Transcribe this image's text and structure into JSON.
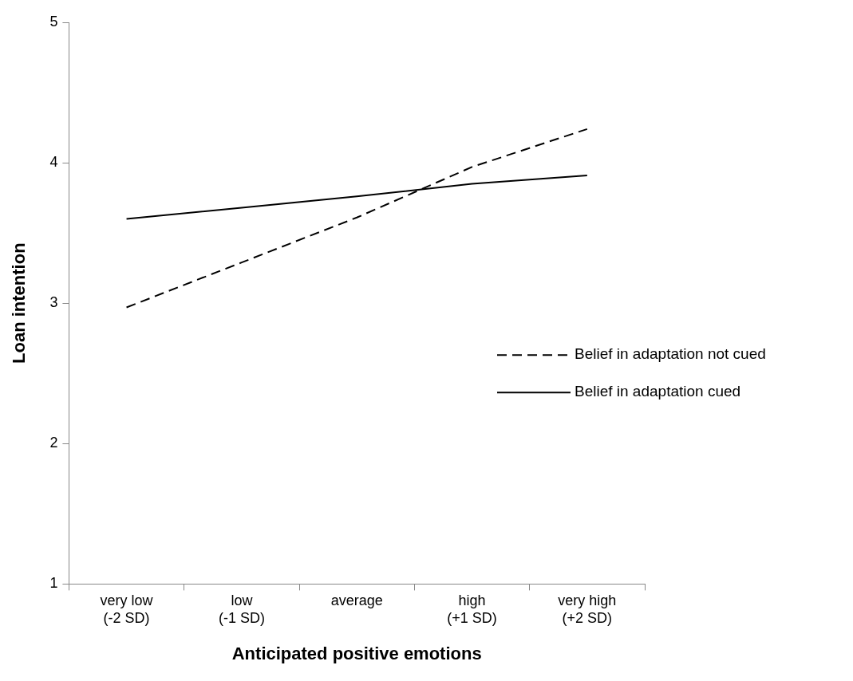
{
  "chart_data": {
    "type": "line",
    "xlabel": "Anticipated positive emotions",
    "ylabel": "Loan intention",
    "categories": [
      "very low (-2 SD)",
      "low (-1 SD)",
      "average",
      "high (+1 SD)",
      "very high (+2 SD)"
    ],
    "series": [
      {
        "name": "Belief in adaptation not cued",
        "color": "#000000",
        "line_style": "dashed",
        "values": [
          2.97,
          3.29,
          3.61,
          3.97,
          4.24
        ]
      },
      {
        "name": "Belief in adaptation cued",
        "color": "#000000",
        "line_style": "solid",
        "values": [
          3.6,
          3.68,
          3.76,
          3.85,
          3.91
        ]
      }
    ],
    "ylim": [
      1,
      5
    ],
    "yticks": [
      1,
      2,
      3,
      4,
      5
    ],
    "grid": false,
    "legend": "right",
    "marker": "none"
  }
}
